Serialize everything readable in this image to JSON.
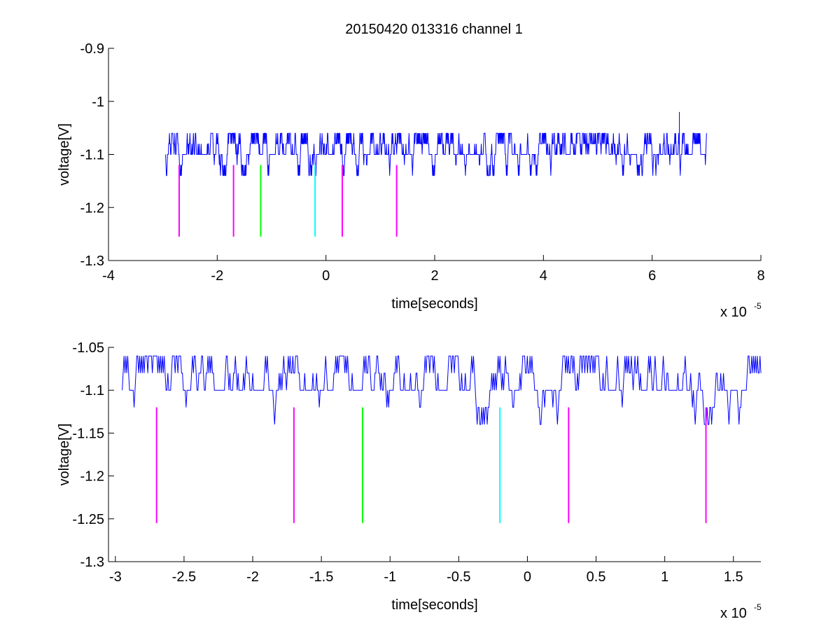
{
  "title": "20150420 013316 channel 1",
  "colors": {
    "signal": "#0000ff",
    "marker_magenta": "#ff00ff",
    "marker_green": "#00ff00",
    "marker_cyan": "#00ffff",
    "axis": "#000000",
    "background": "#ffffff"
  },
  "chart_data": [
    {
      "type": "line",
      "title": "20150420 013316 channel 1",
      "xlabel": "time[seconds]",
      "ylabel": "voltage[V]",
      "x_exponent_label": "x 10",
      "x_exponent_power": "-5",
      "xlim": [
        -4e-05,
        8e-05
      ],
      "ylim": [
        -1.3,
        -0.9
      ],
      "xticks": [
        -4e-05,
        -2e-05,
        0,
        2e-05,
        4e-05,
        6e-05,
        8e-05
      ],
      "xtick_labels": [
        "-4",
        "-2",
        "0",
        "2",
        "4",
        "6",
        "8"
      ],
      "yticks": [
        -1.3,
        -1.2,
        -1.1,
        -1.0,
        -0.9
      ],
      "ytick_labels": [
        "-1.3",
        "-1.2",
        "-1.1",
        "-1",
        "-0.9"
      ],
      "grid": false,
      "signal": {
        "x_start": -2.95e-05,
        "x_end": 7e-05,
        "baseline": -1.1,
        "levels": [
          -1.14,
          -1.12,
          -1.1,
          -1.08,
          -1.06
        ],
        "peak": {
          "x": 6.5e-05,
          "y": -1.02
        }
      },
      "markers": [
        {
          "x": -2.7e-05,
          "y_top": -1.12,
          "y_bottom": -1.255,
          "color": "magenta"
        },
        {
          "x": -1.7e-05,
          "y_top": -1.12,
          "y_bottom": -1.255,
          "color": "magenta"
        },
        {
          "x": -1.2e-05,
          "y_top": -1.12,
          "y_bottom": -1.255,
          "color": "green"
        },
        {
          "x": -2e-06,
          "y_top": -1.12,
          "y_bottom": -1.255,
          "color": "cyan"
        },
        {
          "x": 3e-06,
          "y_top": -1.12,
          "y_bottom": -1.255,
          "color": "magenta"
        },
        {
          "x": 1.3e-05,
          "y_top": -1.12,
          "y_bottom": -1.255,
          "color": "magenta"
        }
      ]
    },
    {
      "type": "line",
      "title": "",
      "xlabel": "time[seconds]",
      "ylabel": "voltage[V]",
      "x_exponent_label": "x 10",
      "x_exponent_power": "-5",
      "xlim": [
        -3.05e-05,
        1.7e-05
      ],
      "ylim": [
        -1.3,
        -1.05
      ],
      "xticks": [
        -3e-05,
        -2.5e-05,
        -2e-05,
        -1.5e-05,
        -1e-05,
        -5e-06,
        0,
        5e-06,
        1e-05,
        1.5e-05
      ],
      "xtick_labels": [
        "-3",
        "-2.5",
        "-2",
        "-1.5",
        "-1",
        "-0.5",
        "0",
        "0.5",
        "1",
        "1.5"
      ],
      "yticks": [
        -1.3,
        -1.25,
        -1.2,
        -1.15,
        -1.1,
        -1.05
      ],
      "ytick_labels": [
        "-1.3",
        "-1.25",
        "-1.2",
        "-1.15",
        "-1.1",
        "-1.05"
      ],
      "grid": false,
      "signal": {
        "x_start": -2.95e-05,
        "x_end": 1.7e-05,
        "baseline": -1.1,
        "levels": [
          -1.14,
          -1.12,
          -1.1,
          -1.08,
          -1.06
        ],
        "peak": null
      },
      "markers": [
        {
          "x": -2.7e-05,
          "y_top": -1.12,
          "y_bottom": -1.255,
          "color": "magenta"
        },
        {
          "x": -1.7e-05,
          "y_top": -1.12,
          "y_bottom": -1.255,
          "color": "magenta"
        },
        {
          "x": -1.2e-05,
          "y_top": -1.12,
          "y_bottom": -1.255,
          "color": "green"
        },
        {
          "x": -2e-06,
          "y_top": -1.12,
          "y_bottom": -1.255,
          "color": "cyan"
        },
        {
          "x": 3e-06,
          "y_top": -1.12,
          "y_bottom": -1.255,
          "color": "magenta"
        },
        {
          "x": 1.3e-05,
          "y_top": -1.12,
          "y_bottom": -1.255,
          "color": "magenta"
        }
      ]
    }
  ]
}
